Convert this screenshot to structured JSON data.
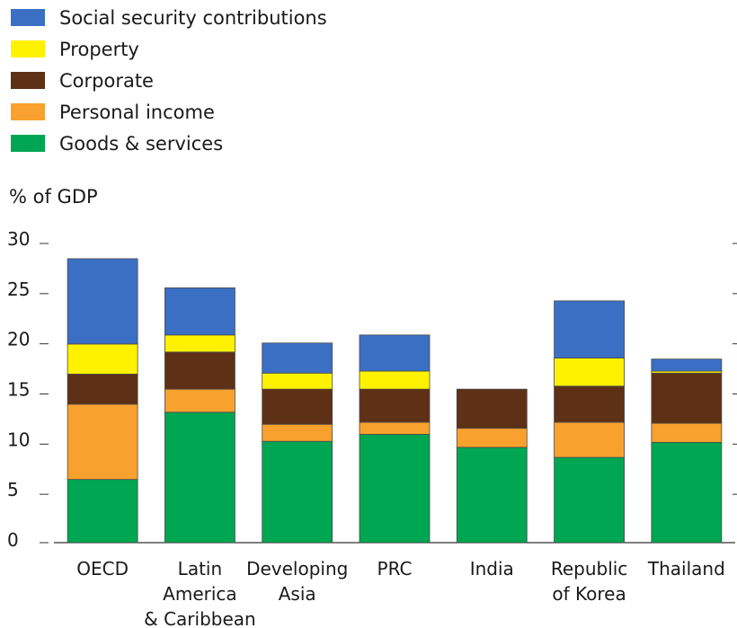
{
  "chart_data": {
    "type": "bar",
    "stacked": true,
    "ylabel": "% of GDP",
    "ylim": [
      0,
      30
    ],
    "yticks": [
      0,
      5,
      10,
      15,
      20,
      25,
      30
    ],
    "legend_position": "top-left",
    "categories": [
      "OECD",
      "Latin America & Caribbean",
      "Developing Asia",
      "PRC",
      "India",
      "Republic of Korea",
      "Thailand"
    ],
    "category_lines": [
      [
        "OECD"
      ],
      [
        "Latin",
        "America",
        "& Caribbean"
      ],
      [
        "Developing",
        "Asia"
      ],
      [
        "PRC"
      ],
      [
        "India"
      ],
      [
        "Republic",
        "of Korea"
      ],
      [
        "Thailand"
      ]
    ],
    "series": [
      {
        "name": "Goods & services",
        "color": "#00a651",
        "values": [
          6.3,
          13.0,
          10.1,
          10.8,
          9.5,
          8.5,
          10.0
        ]
      },
      {
        "name": "Personal income",
        "color": "#f9a12e",
        "values": [
          7.5,
          2.3,
          1.7,
          1.2,
          1.9,
          3.5,
          1.9
        ]
      },
      {
        "name": "Corporate",
        "color": "#5e3015",
        "values": [
          3.0,
          3.7,
          3.5,
          3.3,
          3.9,
          3.6,
          5.0
        ]
      },
      {
        "name": "Property",
        "color": "#fff200",
        "values": [
          3.0,
          1.7,
          1.6,
          1.8,
          0.0,
          2.8,
          0.2
        ]
      },
      {
        "name": "Social security contributions",
        "color": "#3a6fc4",
        "values": [
          8.5,
          4.7,
          3.0,
          3.6,
          0.0,
          5.7,
          1.2
        ]
      }
    ]
  }
}
